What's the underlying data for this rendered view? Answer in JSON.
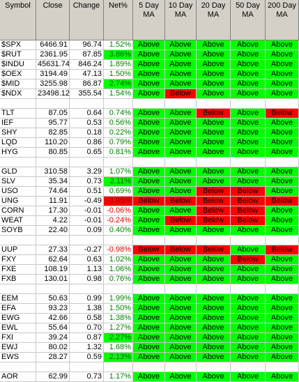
{
  "table": {
    "headers": [
      "Symbol",
      "Close",
      "Change",
      "Net%",
      "5 Day\nMA",
      "10 Day\nMA",
      "20 Day\nMA",
      "50 Day\nMA",
      "200 Day\nMA"
    ],
    "colors": {
      "Above": "#00ff00",
      "Below": "#ff0000"
    },
    "groups": [
      [
        {
          "symbol": "$SPX",
          "close": "6466.91",
          "change": "96.74",
          "net": "1.52%",
          "ma": [
            "Above",
            "Above",
            "Above",
            "Above",
            "Above"
          ]
        },
        {
          "symbol": "$RUT",
          "close": "2361.95",
          "change": "87.85",
          "net": "3.86%",
          "net_fill": "#00ff00",
          "ma": [
            "Above",
            "Above",
            "Above",
            "Above",
            "Above"
          ]
        },
        {
          "symbol": "$INDU",
          "close": "45631.74",
          "change": "846.24",
          "net": "1.89%",
          "ma": [
            "Above",
            "Above",
            "Above",
            "Above",
            "Above"
          ]
        },
        {
          "symbol": "$OEX",
          "close": "3194.49",
          "change": "47.13",
          "net": "1.50%",
          "ma": [
            "Above",
            "Above",
            "Above",
            "Above",
            "Above"
          ]
        },
        {
          "symbol": "$MID",
          "close": "3255.98",
          "change": "86.87",
          "net": "2.74%",
          "net_fill": "#00ff00",
          "ma": [
            "Above",
            "Above",
            "Above",
            "Above",
            "Above"
          ]
        },
        {
          "symbol": "$NDX",
          "close": "23498.12",
          "change": "355.54",
          "net": "1.54%",
          "ma": [
            "Above",
            "Below",
            "Above",
            "Above",
            "Above"
          ]
        }
      ],
      [
        {
          "symbol": "TLT",
          "close": "87.05",
          "change": "0.64",
          "net": "0.74%",
          "ma": [
            "Above",
            "Above",
            "Below",
            "Above",
            "Below"
          ]
        },
        {
          "symbol": "IEF",
          "close": "95.77",
          "change": "0.53",
          "net": "0.56%",
          "ma": [
            "Above",
            "Above",
            "Above",
            "Above",
            "Above"
          ]
        },
        {
          "symbol": "SHY",
          "close": "82.85",
          "change": "0.18",
          "net": "0.22%",
          "ma": [
            "Above",
            "Above",
            "Above",
            "Above",
            "Above"
          ]
        },
        {
          "symbol": "LQD",
          "close": "110.20",
          "change": "0.86",
          "net": "0.79%",
          "ma": [
            "Above",
            "Above",
            "Above",
            "Above",
            "Above"
          ]
        },
        {
          "symbol": "HYG",
          "close": "80.85",
          "change": "0.65",
          "net": "0.81%",
          "ma": [
            "Above",
            "Above",
            "Above",
            "Above",
            "Above"
          ]
        }
      ],
      [
        {
          "symbol": "GLD",
          "close": "310.58",
          "change": "3.29",
          "net": "1.07%",
          "ma": [
            "Above",
            "Above",
            "Above",
            "Above",
            "Above"
          ]
        },
        {
          "symbol": "SLV",
          "close": "35.34",
          "change": "0.73",
          "net": "2.11%",
          "net_fill": "#00ff00",
          "ma": [
            "Above",
            "Above",
            "Above",
            "Above",
            "Above"
          ]
        },
        {
          "symbol": "USO",
          "close": "74.64",
          "change": "0.51",
          "net": "0.69%",
          "ma": [
            "Above",
            "Above",
            "Below",
            "Below",
            "Above"
          ]
        },
        {
          "symbol": "UNG",
          "close": "11.91",
          "change": "-0.49",
          "net": "-3.95%",
          "net_fill": "#ff0000",
          "ma": [
            "Below",
            "Below",
            "Below",
            "Below",
            "Below"
          ]
        },
        {
          "symbol": "CORN",
          "close": "17.30",
          "change": "-0.01",
          "net": "-0.06%",
          "ma": [
            "Above",
            "Above",
            "Below",
            "Below",
            "Above"
          ]
        },
        {
          "symbol": "WEAT",
          "close": "4.22",
          "change": "-0.01",
          "net": "-0.24%",
          "ma": [
            "Above",
            "Below",
            "Below",
            "Below",
            "Above"
          ]
        },
        {
          "symbol": "SOYB",
          "close": "22.40",
          "change": "0.09",
          "net": "0.40%",
          "ma": [
            "Above",
            "Above",
            "Above",
            "Above",
            "Above"
          ]
        }
      ],
      [
        {
          "symbol": "UUP",
          "close": "27.33",
          "change": "-0.27",
          "net": "-0.98%",
          "ma": [
            "Below",
            "Below",
            "Below",
            "Above",
            "Below"
          ]
        },
        {
          "symbol": "FXY",
          "close": "62.64",
          "change": "0.63",
          "net": "1.02%",
          "ma": [
            "Above",
            "Above",
            "Above",
            "Below",
            "Above"
          ]
        },
        {
          "symbol": "FXE",
          "close": "108.19",
          "change": "1.13",
          "net": "1.06%",
          "ma": [
            "Above",
            "Above",
            "Above",
            "Above",
            "Above"
          ]
        },
        {
          "symbol": "FXB",
          "close": "130.01",
          "change": "0.98",
          "net": "0.76%",
          "ma": [
            "Above",
            "Above",
            "Above",
            "Above",
            "Above"
          ]
        }
      ],
      [
        {
          "symbol": "EEM",
          "close": "50.63",
          "change": "0.99",
          "net": "1.99%",
          "ma": [
            "Above",
            "Above",
            "Above",
            "Above",
            "Above"
          ]
        },
        {
          "symbol": "EFA",
          "close": "93.23",
          "change": "1.38",
          "net": "1.50%",
          "ma": [
            "Above",
            "Above",
            "Above",
            "Above",
            "Above"
          ]
        },
        {
          "symbol": "EWG",
          "close": "42.66",
          "change": "0.58",
          "net": "1.38%",
          "ma": [
            "Above",
            "Above",
            "Above",
            "Above",
            "Above"
          ]
        },
        {
          "symbol": "EWL",
          "close": "55.64",
          "change": "0.70",
          "net": "1.27%",
          "ma": [
            "Above",
            "Above",
            "Above",
            "Above",
            "Above"
          ]
        },
        {
          "symbol": "FXI",
          "close": "39.24",
          "change": "0.87",
          "net": "2.27%",
          "net_fill": "#00ff00",
          "ma": [
            "Above",
            "Above",
            "Above",
            "Above",
            "Above"
          ]
        },
        {
          "symbol": "EWJ",
          "close": "80.02",
          "change": "1.32",
          "net": "1.68%",
          "ma": [
            "Above",
            "Above",
            "Above",
            "Above",
            "Above"
          ]
        },
        {
          "symbol": "EWS",
          "close": "28.27",
          "change": "0.59",
          "net": "2.13%",
          "net_fill": "#00ff00",
          "ma": [
            "Above",
            "Above",
            "Above",
            "Above",
            "Above"
          ]
        }
      ],
      [
        {
          "symbol": "AOR",
          "close": "62.99",
          "change": "0.73",
          "net": "1.17%",
          "ma": [
            "Above",
            "Above",
            "Above",
            "Above",
            "Above"
          ]
        }
      ]
    ]
  }
}
